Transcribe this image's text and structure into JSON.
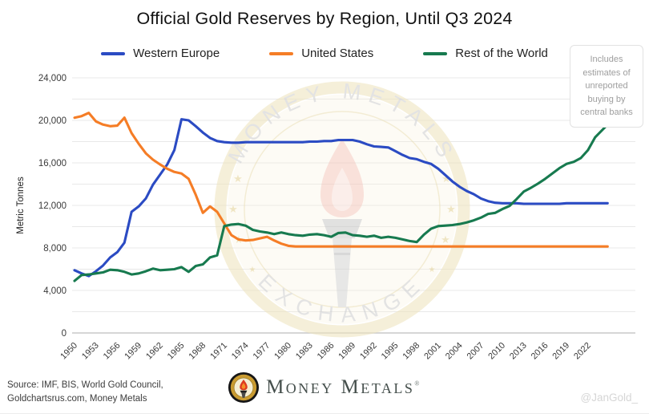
{
  "title": "Official Gold Reserves by Region, Until Q3 2024",
  "note": "Includes estimates of unreported buying by central banks",
  "watermark": {
    "top_text": "MONEY METALS",
    "bottom_text": "EXCHANGE"
  },
  "footer": {
    "source_line1": "Source: IMF, BIS, World Gold Council,",
    "source_line2": "Goldchartsrus.com, Money Metals",
    "brand": "Money Metals",
    "reg_mark": "®",
    "handle": "@JanGold_"
  },
  "chart_data": {
    "type": "line",
    "title": "Official Gold Reserves by Region, Until Q3 2024",
    "xlabel": "",
    "ylabel": "Metric Tonnes",
    "ylim": [
      0,
      24000
    ],
    "y_ticks": [
      0,
      4000,
      8000,
      12000,
      16000,
      20000,
      24000
    ],
    "y_minor_interval": 2000,
    "x_ticks": [
      1950,
      1953,
      1956,
      1959,
      1962,
      1965,
      1968,
      1971,
      1974,
      1977,
      1980,
      1983,
      1986,
      1989,
      1992,
      1995,
      1998,
      2001,
      2004,
      2007,
      2010,
      2013,
      2016,
      2019,
      2022
    ],
    "grid": true,
    "legend_position": "top",
    "x": [
      1950,
      1951,
      1952,
      1953,
      1954,
      1955,
      1956,
      1957,
      1958,
      1959,
      1960,
      1961,
      1962,
      1963,
      1964,
      1965,
      1966,
      1967,
      1968,
      1969,
      1970,
      1971,
      1972,
      1973,
      1974,
      1975,
      1976,
      1977,
      1978,
      1979,
      1980,
      1981,
      1982,
      1983,
      1984,
      1985,
      1986,
      1987,
      1988,
      1989,
      1990,
      1991,
      1992,
      1993,
      1994,
      1995,
      1996,
      1997,
      1998,
      1999,
      2000,
      2001,
      2002,
      2003,
      2004,
      2005,
      2006,
      2007,
      2008,
      2009,
      2010,
      2011,
      2012,
      2013,
      2014,
      2015,
      2016,
      2017,
      2018,
      2019,
      2020,
      2021,
      2022,
      2023,
      2024.75
    ],
    "series": [
      {
        "name": "Western Europe",
        "color": "#2b4bc3",
        "values": [
          5900,
          5600,
          5350,
          5800,
          6350,
          7100,
          7600,
          8500,
          11400,
          11900,
          12650,
          13950,
          14900,
          15850,
          17200,
          20100,
          20000,
          19450,
          18850,
          18350,
          18050,
          17950,
          17900,
          17900,
          17950,
          17950,
          17950,
          17950,
          17950,
          17950,
          17950,
          17950,
          17950,
          18000,
          18000,
          18050,
          18050,
          18150,
          18150,
          18150,
          18000,
          17750,
          17550,
          17500,
          17450,
          17100,
          16750,
          16450,
          16350,
          16100,
          15900,
          15450,
          14850,
          14250,
          13750,
          13350,
          13050,
          12650,
          12400,
          12250,
          12200,
          12200,
          12200,
          12150,
          12150,
          12150,
          12150,
          12150,
          12150,
          12200,
          12200,
          12200,
          12200,
          12200,
          12200
        ]
      },
      {
        "name": "United States",
        "color": "#f57d26",
        "values": [
          20250,
          20400,
          20700,
          19900,
          19600,
          19450,
          19500,
          20250,
          18800,
          17800,
          16900,
          16300,
          15850,
          15450,
          15150,
          15000,
          14500,
          13000,
          11300,
          11900,
          11400,
          10300,
          9200,
          8800,
          8700,
          8750,
          8900,
          9050,
          8700,
          8400,
          8200,
          8133,
          8133,
          8133,
          8133,
          8133,
          8133,
          8133,
          8133,
          8133,
          8133,
          8133,
          8133,
          8133,
          8133,
          8133,
          8133,
          8133,
          8133,
          8133,
          8133,
          8133,
          8133,
          8133,
          8133,
          8133,
          8133,
          8133,
          8133,
          8133,
          8133,
          8133,
          8133,
          8133,
          8133,
          8133,
          8133,
          8133,
          8133,
          8133,
          8133,
          8133,
          8133,
          8133,
          8133
        ]
      },
      {
        "name": "Rest of the World",
        "color": "#177a4f",
        "values": [
          4900,
          5450,
          5500,
          5600,
          5700,
          5950,
          5900,
          5750,
          5500,
          5600,
          5800,
          6050,
          5900,
          5950,
          6000,
          6200,
          5750,
          6300,
          6450,
          7100,
          7300,
          10050,
          10200,
          10250,
          10100,
          9700,
          9550,
          9450,
          9300,
          9450,
          9300,
          9200,
          9150,
          9250,
          9300,
          9200,
          9050,
          9400,
          9450,
          9200,
          9150,
          9050,
          9150,
          8950,
          9050,
          8950,
          8800,
          8650,
          8550,
          9250,
          9800,
          10050,
          10100,
          10150,
          10250,
          10400,
          10600,
          10850,
          11200,
          11300,
          11650,
          11950,
          12600,
          13300,
          13650,
          14050,
          14500,
          15000,
          15500,
          15900,
          16100,
          16450,
          17200,
          18400,
          19600
        ]
      }
    ]
  }
}
